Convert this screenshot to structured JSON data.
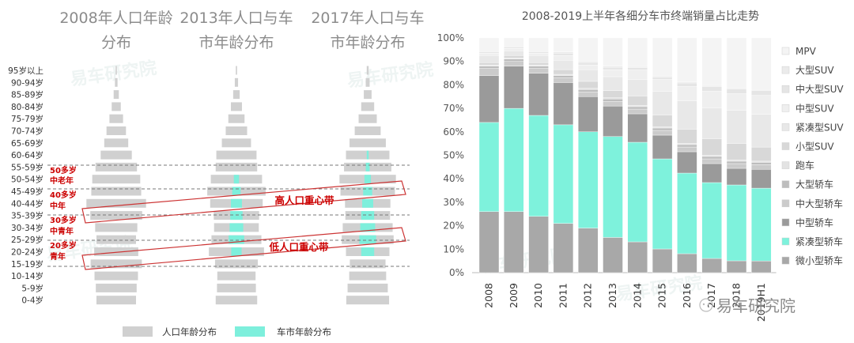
{
  "chart_data": [
    {
      "type": "bar",
      "subtype": "population-pyramid",
      "titles": [
        "2008年人口年龄分布",
        "2013年人口与车市年龄分布",
        "2017年人口与车市年龄分布"
      ],
      "title_lines": [
        [
          "2008年人口年龄",
          "分布"
        ],
        [
          "2013年人口与车",
          "市年龄分布"
        ],
        [
          "2017年人口与车",
          "市年龄分布"
        ]
      ],
      "age_groups": [
        "95岁以上",
        "90-94岁",
        "85-89岁",
        "80-84岁",
        "75-79岁",
        "70-74岁",
        "65-69岁",
        "60-64岁",
        "55-59岁",
        "50-54岁",
        "45-49岁",
        "40-44岁",
        "35-39岁",
        "30-34岁",
        "25-29岁",
        "20-24岁",
        "15-19岁",
        "10-14岁",
        "5-9岁",
        "0-4岁"
      ],
      "series": [
        {
          "name": "人口年龄分布",
          "color": "#d0d0d0",
          "panels": [
            [
              0.2,
              0.4,
              0.8,
              1.4,
              2.1,
              3.0,
              3.7,
              4.8,
              6.4,
              7.4,
              7.7,
              9.2,
              8.0,
              6.5,
              6.1,
              6.8,
              7.9,
              6.7,
              6.3,
              6.1
            ],
            [
              0.2,
              0.5,
              1.0,
              1.7,
              2.5,
              3.3,
              4.5,
              6.2,
              6.4,
              7.9,
              9.0,
              8.1,
              7.0,
              6.9,
              7.7,
              8.5,
              6.6,
              5.9,
              6.0,
              6.4
            ],
            [
              0.3,
              0.6,
              1.2,
              2.0,
              2.8,
              4.0,
              5.6,
              6.7,
              7.3,
              8.7,
              8.4,
              7.0,
              6.9,
              7.7,
              8.0,
              6.7,
              5.5,
              5.7,
              6.2,
              6.6
            ]
          ]
        },
        {
          "name": "车市年龄分布",
          "color": "#7eefdc",
          "panels": [
            [
              0,
              0,
              0,
              0,
              0,
              0,
              0,
              0,
              0,
              0,
              0,
              0,
              0,
              0,
              0,
              0,
              0,
              0,
              0,
              0
            ],
            [
              0,
              0,
              0,
              0,
              0,
              0,
              0,
              0,
              0,
              0.8,
              1.3,
              1.7,
              1.9,
              2.1,
              2.4,
              1.6,
              0,
              0,
              0,
              0
            ],
            [
              0,
              0,
              0,
              0,
              0,
              0,
              0,
              0.3,
              0.6,
              1.0,
              1.4,
              1.7,
              2.0,
              2.3,
              2.6,
              2.0,
              0,
              0,
              0,
              0
            ]
          ]
        }
      ],
      "bands": [
        {
          "lines": [
            "50多岁",
            "中老年"
          ]
        },
        {
          "lines": [
            "40多岁",
            "中年"
          ]
        },
        {
          "lines": [
            "30多岁",
            "中青年"
          ]
        },
        {
          "lines": [
            "20多岁",
            "青年"
          ]
        }
      ],
      "callouts": [
        "高人口重心带",
        "低人口重心带"
      ]
    },
    {
      "type": "bar",
      "subtype": "stacked-100",
      "title": "2008-2019上半年各细分车市终端销量占比走势",
      "categories": [
        "2008",
        "2009",
        "2010",
        "2011",
        "2012",
        "2013",
        "2014",
        "2015",
        "2016",
        "2017",
        "2018",
        "2019H1"
      ],
      "ylim": [
        0,
        100
      ],
      "yticks": [
        "0%",
        "10%",
        "20%",
        "30%",
        "40%",
        "50%",
        "60%",
        "70%",
        "80%",
        "90%",
        "100%"
      ],
      "series": [
        {
          "name": "微小型轿车",
          "color": "#a8a8a8",
          "values": [
            26,
            26,
            24,
            21,
            19,
            15,
            13,
            10,
            8,
            6,
            5,
            5
          ]
        },
        {
          "name": "紧凑型轿车",
          "color": "#7ef2dc",
          "values": [
            38,
            44,
            43,
            42,
            41,
            43,
            42,
            38,
            34,
            32,
            32,
            31
          ]
        },
        {
          "name": "中型轿车",
          "color": "#9a9a9a",
          "values": [
            20,
            18,
            18,
            18,
            15,
            13,
            12,
            10,
            9,
            8,
            7,
            8
          ]
        },
        {
          "name": "中大型轿车",
          "color": "#cbcbcb",
          "values": [
            3,
            2,
            2,
            2,
            2,
            2,
            2,
            2,
            2,
            2,
            2,
            2
          ]
        },
        {
          "name": "大型轿车",
          "color": "#bdbdbd",
          "values": [
            1,
            1,
            1,
            1,
            1,
            1,
            1,
            1,
            1,
            1,
            1,
            1
          ]
        },
        {
          "name": "跑车",
          "color": "#e3e3e3",
          "values": [
            0.5,
            0.5,
            0.5,
            0.5,
            0.5,
            0.5,
            0.5,
            0.5,
            0.5,
            0.5,
            0.5,
            0.5
          ]
        },
        {
          "name": "小型SUV",
          "color": "#d8d8d8",
          "values": [
            1,
            1,
            1,
            2,
            3,
            3,
            4,
            5,
            6,
            7,
            7,
            6
          ]
        },
        {
          "name": "紧凑型SUV",
          "color": "#e8e8e8",
          "values": [
            3,
            2,
            3,
            4,
            5,
            6,
            7,
            10,
            12,
            13,
            14,
            14
          ]
        },
        {
          "name": "中型SUV",
          "color": "#efefef",
          "values": [
            1,
            1,
            1,
            2,
            2,
            3,
            4,
            5,
            6,
            7,
            7,
            8
          ]
        },
        {
          "name": "中大型SUV",
          "color": "#e5e5e5",
          "values": [
            0.5,
            0.5,
            0.5,
            1,
            1,
            1,
            1,
            1,
            1.5,
            2,
            2,
            2
          ]
        },
        {
          "name": "大型SUV",
          "color": "#ebebeb",
          "values": [
            0.5,
            0.5,
            0.5,
            0.5,
            0.5,
            0.5,
            0.5,
            0.5,
            0.5,
            0.5,
            0.5,
            0.5
          ]
        },
        {
          "name": "MPV",
          "color": "#f4f4f4",
          "values": [
            5.5,
            3.5,
            5.5,
            6,
            10,
            12,
            12,
            16,
            18.5,
            20,
            21,
            22
          ]
        }
      ]
    }
  ],
  "watermark": "易车研究院",
  "footer_brand": "易车研究院"
}
